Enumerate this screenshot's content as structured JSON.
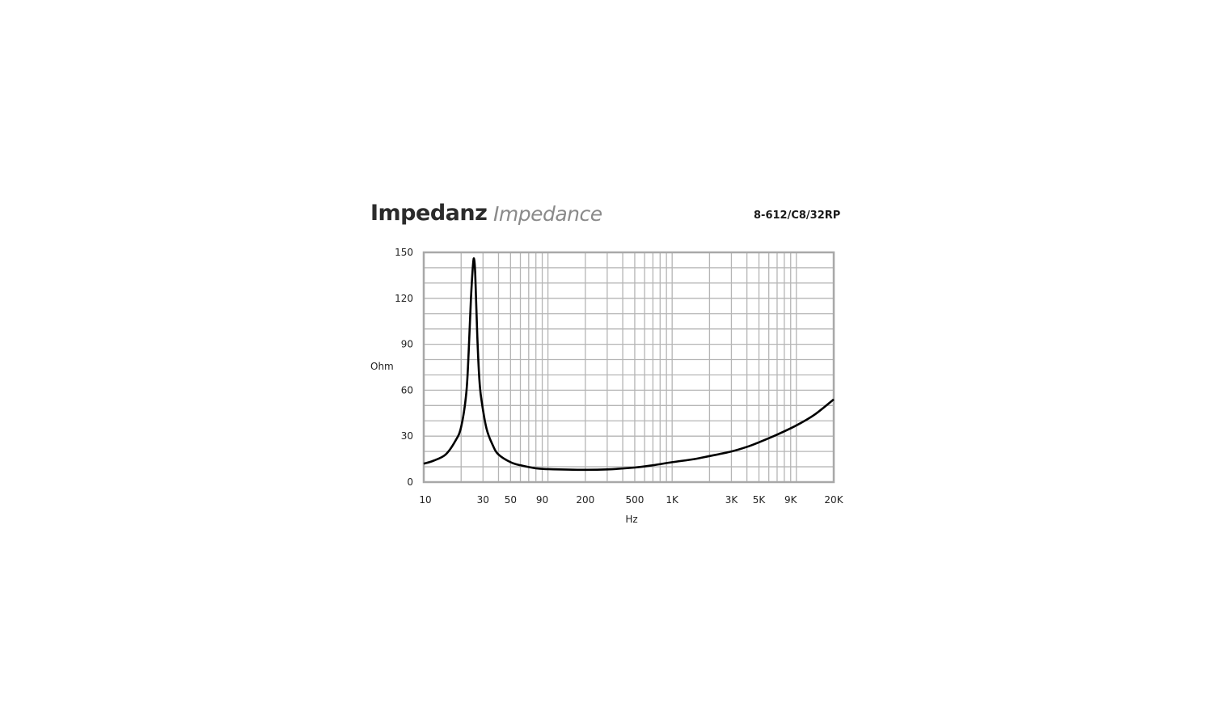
{
  "chart_data": {
    "type": "line",
    "title": "Impedanz",
    "subtitle": "Impedance",
    "model": "8-612/C8/32RP",
    "xlabel": "Hz",
    "ylabel": "Ohm",
    "xscale": "log",
    "xlim": [
      10,
      20000
    ],
    "ylim": [
      0,
      150
    ],
    "grid": true,
    "x_ticks": [
      {
        "value": 10,
        "label": "10"
      },
      {
        "value": 30,
        "label": "30"
      },
      {
        "value": 50,
        "label": "50"
      },
      {
        "value": 90,
        "label": "90"
      },
      {
        "value": 200,
        "label": "200"
      },
      {
        "value": 500,
        "label": "500"
      },
      {
        "value": 1000,
        "label": "1K"
      },
      {
        "value": 3000,
        "label": "3K"
      },
      {
        "value": 5000,
        "label": "5K"
      },
      {
        "value": 9000,
        "label": "9K"
      },
      {
        "value": 20000,
        "label": "20K"
      }
    ],
    "y_ticks": [
      {
        "value": 0,
        "label": "0"
      },
      {
        "value": 30,
        "label": "30"
      },
      {
        "value": 60,
        "label": "60"
      },
      {
        "value": 90,
        "label": "90"
      },
      {
        "value": 120,
        "label": "120"
      },
      {
        "value": 150,
        "label": "150"
      }
    ],
    "colors": {
      "line": "#000000",
      "grid": "#b5b5b5",
      "frame": "#a8a8a8"
    },
    "series": [
      {
        "x": [
          10,
          12,
          15,
          18,
          20,
          22,
          23,
          24,
          25,
          25.5,
          26,
          27,
          28,
          29,
          32,
          36,
          40,
          50,
          60,
          80,
          100,
          200,
          300,
          500,
          700,
          1000,
          1500,
          2000,
          3000,
          4000,
          5000,
          7000,
          10000,
          14000,
          20000
        ],
        "y": [
          12,
          14,
          18,
          27,
          36,
          58,
          85,
          120,
          143,
          145,
          135,
          95,
          68,
          55,
          35,
          24,
          18,
          13,
          11,
          9,
          8.5,
          8,
          8.3,
          9.5,
          11,
          13,
          15,
          17,
          20,
          23,
          26,
          31,
          37,
          44,
          54
        ]
      }
    ]
  }
}
